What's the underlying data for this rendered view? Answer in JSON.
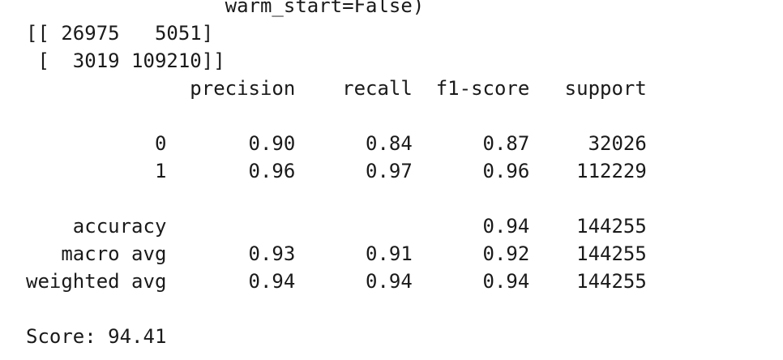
{
  "output": {
    "lines": [
      "                 warm_start=False)",
      "[[ 26975   5051]",
      " [  3019 109210]]",
      "              precision    recall  f1-score   support",
      "",
      "           0       0.90      0.84      0.87     32026",
      "           1       0.96      0.97      0.96    112229",
      "",
      "    accuracy                           0.94    144255",
      "   macro avg       0.93      0.91      0.92    144255",
      "weighted avg       0.94      0.94      0.94    144255",
      "",
      "Score: 94.41"
    ]
  }
}
